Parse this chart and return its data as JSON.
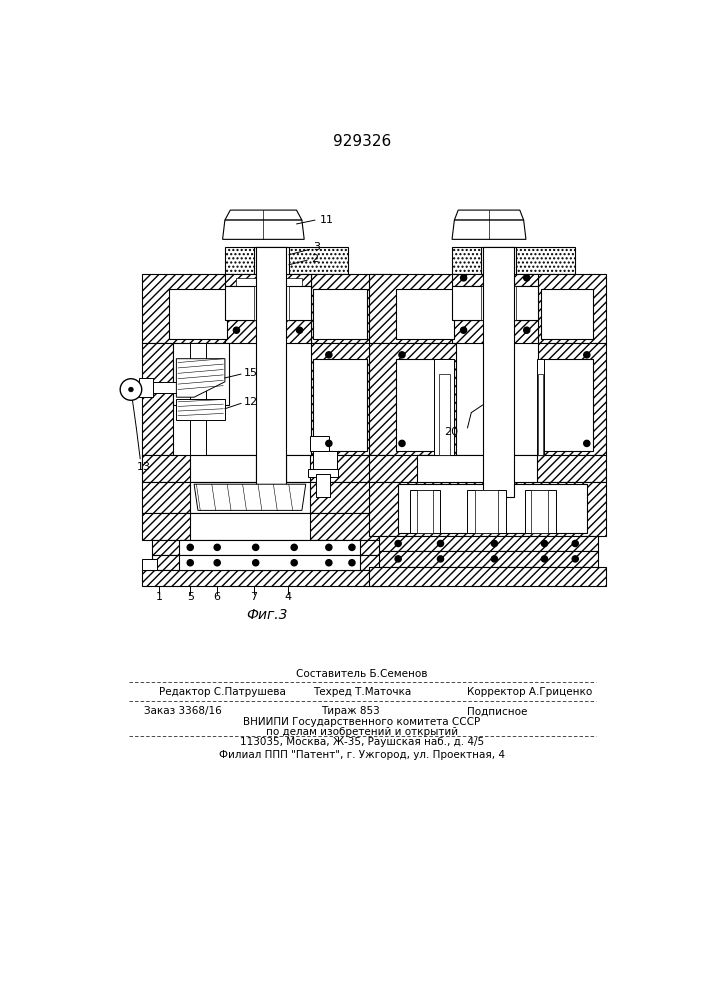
{
  "title": "929326",
  "fig_label": "Фиг.3",
  "cap1": "Составитель Б.Семенов",
  "cap2l": "Редактор С.Патрушева",
  "cap2m": "Техред Т.Маточка",
  "cap2r": "Корректор А.Гриценко",
  "cap3l": "Заказ 3368/16",
  "cap3m": "Тираж 853",
  "cap3r": "Подписное",
  "cap4": "ВНИИПИ Государственного комитета СССР",
  "cap5": "по делам изобретений и открытий",
  "cap6": "113035, Москва, Ж-35, Раушская наб., д. 4/5",
  "cap7": "Филиал ППП \"Патент\", г. Ужгород, ул. Проектная, 4"
}
